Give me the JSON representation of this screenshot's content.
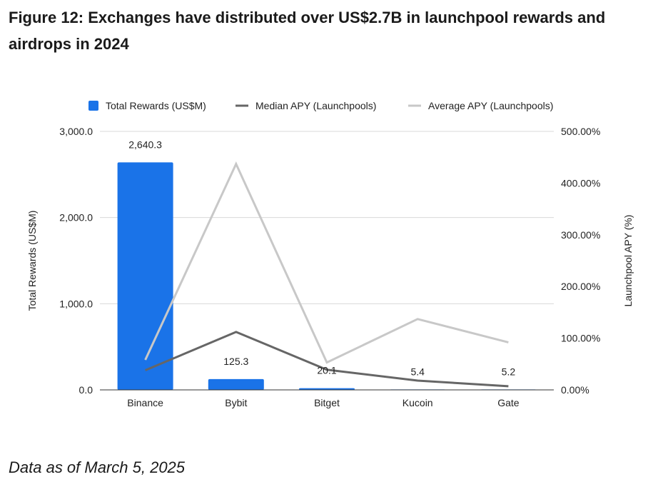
{
  "title": "Figure 12: Exchanges have distributed over US$2.7B in launchpool rewards and airdrops in 2024",
  "footnote": "Data as of March 5, 2025",
  "chart_data": {
    "type": "bar",
    "categories": [
      "Binance",
      "Bybit",
      "Bitget",
      "Kucoin",
      "Gate"
    ],
    "series": [
      {
        "name": "Total Rewards (US$M)",
        "type": "bar",
        "axis": "left",
        "values": [
          2640.3,
          125.3,
          20.1,
          5.4,
          5.2
        ],
        "color": "#1a73e8"
      },
      {
        "name": "Median APY (Launchpools)",
        "type": "line",
        "axis": "right",
        "values": [
          38,
          112,
          39,
          18,
          7
        ],
        "color": "#666666"
      },
      {
        "name": "Average APY (Launchpools)",
        "type": "line",
        "axis": "right",
        "values": [
          58,
          437,
          53,
          137,
          92
        ],
        "color": "#c8c8c8"
      }
    ],
    "data_labels": [
      "2,640.3",
      "125.3",
      "20.1",
      "5.4",
      "5.2"
    ],
    "ylabel": "Total Rewards (US$M)",
    "y2label": "Launchpool APY (%)",
    "ylim": [
      0,
      3000
    ],
    "y2lim": [
      0,
      500
    ],
    "y_ticks": [
      "0.0",
      "1,000.0",
      "2,000.0",
      "3,000.0"
    ],
    "y2_ticks": [
      "0.00%",
      "100.00%",
      "200.00%",
      "300.00%",
      "400.00%",
      "500.00%"
    ],
    "grid": true,
    "legend_position": "top"
  }
}
